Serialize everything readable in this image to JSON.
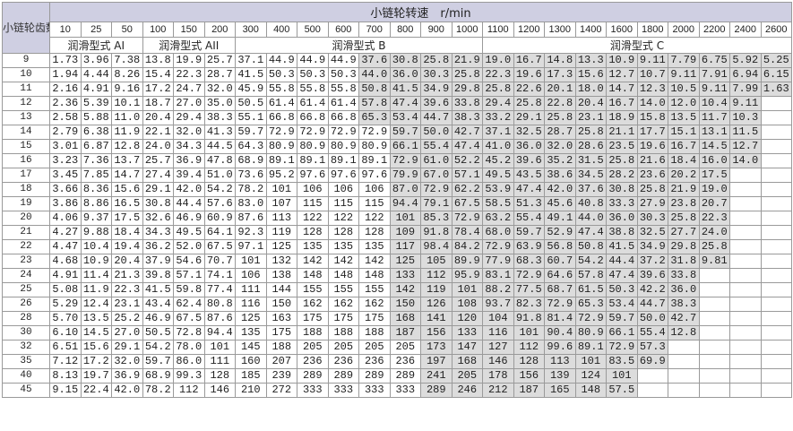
{
  "corner_label": "小链轮齿数",
  "title": "小链轮转速　r/min",
  "speeds": [
    "10",
    "25",
    "50",
    "100",
    "150",
    "200",
    "300",
    "400",
    "500",
    "600",
    "700",
    "800",
    "900",
    "1000",
    "1100",
    "1200",
    "1300",
    "1400",
    "1600",
    "1800",
    "2000",
    "2200",
    "2400",
    "2600"
  ],
  "lubrication": [
    {
      "label": "润滑型式 AI",
      "span": 3
    },
    {
      "label": "润滑型式 AII",
      "span": 3
    },
    {
      "label": "润滑型式 B",
      "span": 8
    },
    {
      "label": "润滑型式 C",
      "span": 10
    }
  ],
  "colors": {
    "header_bg": "#cfcfe2",
    "shaded_cell": "#dcdcdc",
    "border": "#9a9a9a"
  },
  "rows": [
    {
      "teeth": "9",
      "shade_from": 10,
      "values": [
        "1.73",
        "3.96",
        "7.38",
        "13.8",
        "19.9",
        "25.7",
        "37.1",
        "44.9",
        "44.9",
        "44.9",
        "37.6",
        "30.8",
        "25.8",
        "21.9",
        "19.0",
        "16.7",
        "14.8",
        "13.3",
        "10.9",
        "9.11",
        "7.79",
        "6.75",
        "5.92",
        "5.25"
      ]
    },
    {
      "teeth": "10",
      "shade_from": 10,
      "values": [
        "1.94",
        "4.44",
        "8.26",
        "15.4",
        "22.3",
        "28.7",
        "41.5",
        "50.3",
        "50.3",
        "50.3",
        "44.0",
        "36.0",
        "30.3",
        "25.8",
        "22.3",
        "19.6",
        "17.3",
        "15.6",
        "12.7",
        "10.7",
        "9.11",
        "7.91",
        "6.94",
        "6.15"
      ]
    },
    {
      "teeth": "11",
      "shade_from": 10,
      "values": [
        "2.16",
        "4.91",
        "9.16",
        "17.2",
        "24.7",
        "32.0",
        "45.9",
        "55.8",
        "55.8",
        "55.8",
        "50.8",
        "41.5",
        "34.9",
        "29.8",
        "25.8",
        "22.6",
        "20.1",
        "18.0",
        "14.7",
        "12.3",
        "10.5",
        "9.11",
        "7.99",
        "1.63"
      ]
    },
    {
      "teeth": "12",
      "shade_from": 10,
      "values": [
        "2.36",
        "5.39",
        "10.1",
        "18.7",
        "27.0",
        "35.0",
        "50.5",
        "61.4",
        "61.4",
        "61.4",
        "57.8",
        "47.4",
        "39.6",
        "33.8",
        "29.4",
        "25.8",
        "22.8",
        "20.4",
        "16.7",
        "14.0",
        "12.0",
        "10.4",
        "9.11",
        ""
      ]
    },
    {
      "teeth": "13",
      "shade_from": 10,
      "values": [
        "2.58",
        "5.88",
        "11.0",
        "20.4",
        "29.4",
        "38.3",
        "55.1",
        "66.8",
        "66.8",
        "66.8",
        "65.3",
        "53.4",
        "44.7",
        "38.3",
        "33.2",
        "29.1",
        "25.8",
        "23.1",
        "18.9",
        "15.8",
        "13.5",
        "11.7",
        "10.3",
        ""
      ]
    },
    {
      "teeth": "14",
      "shade_from": 11,
      "values": [
        "2.79",
        "6.38",
        "11.9",
        "22.1",
        "32.0",
        "41.3",
        "59.7",
        "72.9",
        "72.9",
        "72.9",
        "72.9",
        "59.7",
        "50.0",
        "42.7",
        "37.1",
        "32.5",
        "28.7",
        "25.8",
        "21.1",
        "17.7",
        "15.1",
        "13.1",
        "11.5",
        ""
      ]
    },
    {
      "teeth": "15",
      "shade_from": 11,
      "values": [
        "3.01",
        "6.87",
        "12.8",
        "24.0",
        "34.3",
        "44.5",
        "64.3",
        "80.9",
        "80.9",
        "80.9",
        "80.9",
        "66.1",
        "55.4",
        "47.4",
        "41.0",
        "36.0",
        "32.0",
        "28.6",
        "23.5",
        "19.6",
        "16.7",
        "14.5",
        "12.7",
        ""
      ]
    },
    {
      "teeth": "16",
      "shade_from": 11,
      "values": [
        "3.23",
        "7.36",
        "13.7",
        "25.7",
        "36.9",
        "47.8",
        "68.9",
        "89.1",
        "89.1",
        "89.1",
        "89.1",
        "72.9",
        "61.0",
        "52.2",
        "45.2",
        "39.6",
        "35.2",
        "31.5",
        "25.8",
        "21.6",
        "18.4",
        "16.0",
        "14.0",
        ""
      ]
    },
    {
      "teeth": "17",
      "shade_from": 11,
      "values": [
        "3.45",
        "7.85",
        "14.7",
        "27.4",
        "39.4",
        "51.0",
        "73.6",
        "95.2",
        "97.6",
        "97.6",
        "97.6",
        "79.9",
        "67.0",
        "57.1",
        "49.5",
        "43.5",
        "38.6",
        "34.5",
        "28.2",
        "23.6",
        "20.2",
        "17.5",
        "",
        ""
      ]
    },
    {
      "teeth": "18",
      "shade_from": 11,
      "values": [
        "3.66",
        "8.36",
        "15.6",
        "29.1",
        "42.0",
        "54.2",
        "78.2",
        "101",
        "106",
        "106",
        "106",
        "87.0",
        "72.9",
        "62.2",
        "53.9",
        "47.4",
        "42.0",
        "37.6",
        "30.8",
        "25.8",
        "21.9",
        "19.0",
        "",
        ""
      ]
    },
    {
      "teeth": "19",
      "shade_from": 11,
      "values": [
        "3.86",
        "8.86",
        "16.5",
        "30.8",
        "44.4",
        "57.6",
        "83.0",
        "107",
        "115",
        "115",
        "115",
        "94.4",
        "79.1",
        "67.5",
        "58.5",
        "51.3",
        "45.6",
        "40.8",
        "33.3",
        "27.9",
        "23.8",
        "20.7",
        "",
        ""
      ]
    },
    {
      "teeth": "20",
      "shade_from": 11,
      "values": [
        "4.06",
        "9.37",
        "17.5",
        "32.6",
        "46.9",
        "60.9",
        "87.6",
        "113",
        "122",
        "122",
        "122",
        "101",
        "85.3",
        "72.9",
        "63.2",
        "55.4",
        "49.1",
        "44.0",
        "36.0",
        "30.3",
        "25.8",
        "22.3",
        "",
        ""
      ]
    },
    {
      "teeth": "21",
      "shade_from": 11,
      "values": [
        "4.27",
        "9.88",
        "18.4",
        "34.3",
        "49.5",
        "64.1",
        "92.3",
        "119",
        "128",
        "128",
        "128",
        "109",
        "91.8",
        "78.4",
        "68.0",
        "59.7",
        "52.9",
        "47.4",
        "38.8",
        "32.5",
        "27.7",
        "24.0",
        "",
        ""
      ]
    },
    {
      "teeth": "22",
      "shade_from": 11,
      "values": [
        "4.47",
        "10.4",
        "19.4",
        "36.2",
        "52.0",
        "67.5",
        "97.1",
        "125",
        "135",
        "135",
        "135",
        "117",
        "98.4",
        "84.2",
        "72.9",
        "63.9",
        "56.8",
        "50.8",
        "41.5",
        "34.9",
        "29.8",
        "25.8",
        "",
        ""
      ]
    },
    {
      "teeth": "23",
      "shade_from": 11,
      "values": [
        "4.68",
        "10.9",
        "20.4",
        "37.9",
        "54.6",
        "70.7",
        "101",
        "132",
        "142",
        "142",
        "142",
        "125",
        "105",
        "89.9",
        "77.9",
        "68.3",
        "60.7",
        "54.2",
        "44.4",
        "37.2",
        "31.8",
        "9.81",
        "",
        ""
      ]
    },
    {
      "teeth": "24",
      "shade_from": 11,
      "values": [
        "4.91",
        "11.4",
        "21.3",
        "39.8",
        "57.1",
        "74.1",
        "106",
        "138",
        "148",
        "148",
        "148",
        "133",
        "112",
        "95.9",
        "83.1",
        "72.9",
        "64.6",
        "57.8",
        "47.4",
        "39.6",
        "33.8",
        "",
        "",
        ""
      ]
    },
    {
      "teeth": "25",
      "shade_from": 11,
      "values": [
        "5.08",
        "11.9",
        "22.3",
        "41.5",
        "59.8",
        "77.4",
        "111",
        "144",
        "155",
        "155",
        "155",
        "142",
        "119",
        "101",
        "88.2",
        "77.5",
        "68.7",
        "61.5",
        "50.3",
        "42.2",
        "36.0",
        "",
        "",
        ""
      ]
    },
    {
      "teeth": "26",
      "shade_from": 11,
      "values": [
        "5.29",
        "12.4",
        "23.1",
        "43.4",
        "62.4",
        "80.8",
        "116",
        "150",
        "162",
        "162",
        "162",
        "150",
        "126",
        "108",
        "93.7",
        "82.3",
        "72.9",
        "65.3",
        "53.4",
        "44.7",
        "38.3",
        "",
        "",
        ""
      ]
    },
    {
      "teeth": "28",
      "shade_from": 11,
      "values": [
        "5.70",
        "13.5",
        "25.2",
        "46.9",
        "67.5",
        "87.6",
        "125",
        "163",
        "175",
        "175",
        "175",
        "168",
        "141",
        "120",
        "104",
        "91.8",
        "81.4",
        "72.9",
        "59.7",
        "50.0",
        "42.7",
        "",
        "",
        ""
      ]
    },
    {
      "teeth": "30",
      "shade_from": 11,
      "values": [
        "6.10",
        "14.5",
        "27.0",
        "50.5",
        "72.8",
        "94.4",
        "135",
        "175",
        "188",
        "188",
        "188",
        "187",
        "156",
        "133",
        "116",
        "101",
        "90.4",
        "80.9",
        "66.1",
        "55.4",
        "12.8",
        "",
        "",
        ""
      ]
    },
    {
      "teeth": "32",
      "shade_from": 12,
      "values": [
        "6.51",
        "15.6",
        "29.1",
        "54.2",
        "78.0",
        "101",
        "145",
        "188",
        "205",
        "205",
        "205",
        "205",
        "173",
        "147",
        "127",
        "112",
        "99.6",
        "89.1",
        "72.9",
        "57.3",
        "",
        "",
        "",
        ""
      ]
    },
    {
      "teeth": "35",
      "shade_from": 12,
      "values": [
        "7.12",
        "17.2",
        "32.0",
        "59.7",
        "86.0",
        "111",
        "160",
        "207",
        "236",
        "236",
        "236",
        "236",
        "197",
        "168",
        "146",
        "128",
        "113",
        "101",
        "83.5",
        "69.9",
        "",
        "",
        "",
        ""
      ]
    },
    {
      "teeth": "40",
      "shade_from": 12,
      "values": [
        "8.13",
        "19.7",
        "36.9",
        "68.9",
        "99.3",
        "128",
        "185",
        "239",
        "289",
        "289",
        "289",
        "289",
        "241",
        "205",
        "178",
        "156",
        "139",
        "124",
        "101",
        "",
        "",
        "",
        "",
        ""
      ]
    },
    {
      "teeth": "45",
      "shade_from": 12,
      "values": [
        "9.15",
        "22.4",
        "42.0",
        "78.2",
        "112",
        "146",
        "210",
        "272",
        "333",
        "333",
        "333",
        "333",
        "289",
        "246",
        "212",
        "187",
        "165",
        "148",
        "57.5",
        "",
        "",
        "",
        "",
        ""
      ]
    }
  ]
}
